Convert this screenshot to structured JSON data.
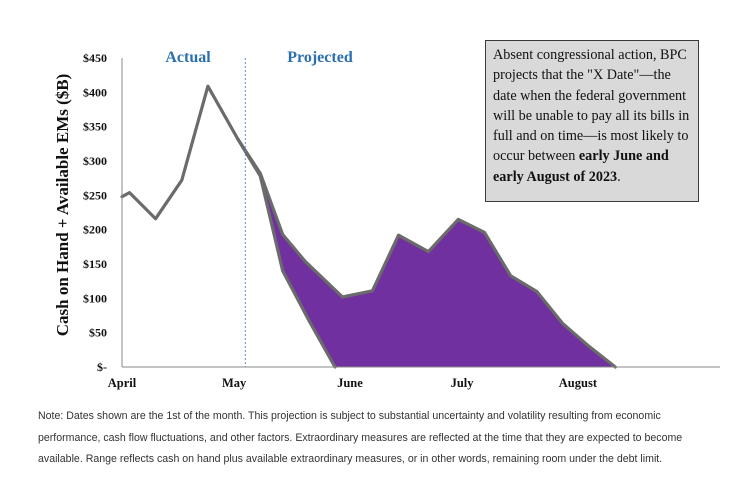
{
  "chart_data": {
    "type": "area",
    "title": "",
    "xlabel": "",
    "ylabel": "Cash on Hand + Available EMs ($B)",
    "ylim": [
      0,
      450
    ],
    "yticks": [
      0,
      50,
      100,
      150,
      200,
      250,
      300,
      350,
      400,
      450
    ],
    "ytick_labels": [
      "$-",
      "$50",
      "$100",
      "$150",
      "$200",
      "$250",
      "$300",
      "$350",
      "$400",
      "$450"
    ],
    "x_axis": "calendar days of 2023, April 1 through late August",
    "xticks": [
      "2023-04-01",
      "2023-05-01",
      "2023-06-01",
      "2023-07-01",
      "2023-08-01"
    ],
    "xtick_labels": [
      "April",
      "May",
      "June",
      "July",
      "August"
    ],
    "divider_date": "2023-05-04",
    "phase_labels": [
      "Actual",
      "Projected"
    ],
    "fill_color": "#7030a0",
    "line_color": "#6b6b6b",
    "divider_color": "#5b8fd0",
    "series": [
      {
        "name": "",
        "points": [
          [
            "2023-04-01",
            248
          ],
          [
            "2023-04-03",
            254
          ],
          [
            "2023-04-10",
            216
          ],
          [
            "2023-04-17",
            272
          ],
          [
            "2023-04-24",
            409
          ],
          [
            "2023-05-02",
            332
          ],
          [
            "2023-05-08",
            282
          ],
          [
            "2023-05-14",
            193
          ],
          [
            "2023-05-20",
            154
          ],
          [
            "2023-05-30",
            102
          ],
          [
            "2023-06-07",
            111
          ],
          [
            "2023-06-14",
            192
          ],
          [
            "2023-06-22",
            168
          ],
          [
            "2023-06-30",
            215
          ],
          [
            "2023-07-07",
            196
          ],
          [
            "2023-07-14",
            133
          ],
          [
            "2023-07-21",
            110
          ],
          [
            "2023-07-28",
            63
          ],
          [
            "2023-08-04",
            30
          ],
          [
            "2023-08-11",
            0
          ]
        ]
      },
      {
        "name": "",
        "points": [
          [
            "2023-05-02",
            332
          ],
          [
            "2023-05-08",
            278
          ],
          [
            "2023-05-14",
            140
          ],
          [
            "2023-05-21",
            68
          ],
          [
            "2023-05-28",
            0
          ]
        ]
      }
    ]
  },
  "callout": {
    "text_plain": "Absent congressional action, BPC projects that the \"X Date\"—the date when the federal government will be unable to pay all its bills in full and on time—is most likely to occur between ",
    "text_bold": "early June and early August of 2023",
    "text_end": "."
  },
  "note": "Note: Dates shown are the 1st of the month. This projection is subject to substantial uncertainty and volatility resulting from economic performance, cash flow fluctuations, and other factors. Extraordinary measures are reflected at the time that they are expected to become available. Range reflects cash on hand plus available extraordinary measures, or in other words, remaining room under the debt limit."
}
